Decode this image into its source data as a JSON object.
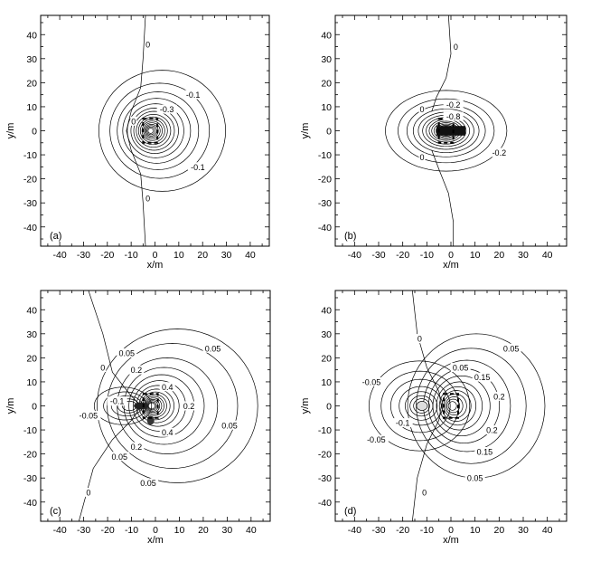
{
  "chart_data": [
    {
      "type": "contour",
      "panel_label": "(a)",
      "xlabel": "x/m",
      "ylabel": "y/m",
      "xlim": [
        -48,
        48
      ],
      "ylim": [
        -48,
        48
      ],
      "xticks": [
        "-40",
        "-30",
        "-20",
        "-10",
        "0",
        "10",
        "20",
        "30",
        "40"
      ],
      "yticks": [
        "40",
        "30",
        "20",
        "10",
        "0",
        "-10",
        "-20",
        "-30",
        "-40"
      ],
      "source": {
        "x": -2,
        "y": 0
      },
      "contour_labels": [
        {
          "text": "0",
          "x": -3,
          "y": 36
        },
        {
          "text": "-0.1",
          "x": 16,
          "y": 15
        },
        {
          "text": "-0.3",
          "x": 5,
          "y": 9
        },
        {
          "text": "0",
          "x": -9,
          "y": 4
        },
        {
          "text": "-0.1",
          "x": 18,
          "y": -15
        },
        {
          "text": "0",
          "x": -3,
          "y": -28
        }
      ]
    },
    {
      "type": "contour",
      "panel_label": "(b)",
      "xlabel": "x/m",
      "ylabel": "y/m",
      "xlim": [
        -48,
        48
      ],
      "ylim": [
        -48,
        48
      ],
      "xticks": [
        "-40",
        "-30",
        "-20",
        "-10",
        "0",
        "10",
        "20",
        "30",
        "40"
      ],
      "yticks": [
        "40",
        "30",
        "20",
        "10",
        "0",
        "-10",
        "-20",
        "-30",
        "-40"
      ],
      "source": {
        "x": -2,
        "y": 0
      },
      "contour_labels": [
        {
          "text": "0",
          "x": 2,
          "y": 35
        },
        {
          "text": "-0.2",
          "x": 1,
          "y": 11
        },
        {
          "text": "-0.8",
          "x": 1,
          "y": 6
        },
        {
          "text": "0",
          "x": -12,
          "y": 9
        },
        {
          "text": "0",
          "x": -12,
          "y": -11
        },
        {
          "text": "-0.2",
          "x": 20,
          "y": -9
        }
      ]
    },
    {
      "type": "contour",
      "panel_label": "(c)",
      "xlabel": "x/m",
      "ylabel": "y/m",
      "xlim": [
        -48,
        48
      ],
      "ylim": [
        -48,
        48
      ],
      "xticks": [
        "-40",
        "-30",
        "-20",
        "-10",
        "0",
        "10",
        "20",
        "30",
        "40"
      ],
      "yticks": [
        "40",
        "30",
        "20",
        "10",
        "0",
        "-10",
        "-20",
        "-30",
        "-40"
      ],
      "source": {
        "x": -2,
        "y": 0
      },
      "contour_labels": [
        {
          "text": "0.05",
          "x": -12,
          "y": 22
        },
        {
          "text": "0.05",
          "x": 24,
          "y": 24
        },
        {
          "text": "0",
          "x": -22,
          "y": 16
        },
        {
          "text": "0.2",
          "x": -8,
          "y": 15
        },
        {
          "text": "0.4",
          "x": 5,
          "y": 8
        },
        {
          "text": "-0.1",
          "x": -16,
          "y": 2
        },
        {
          "text": "0.2",
          "x": 14,
          "y": 0
        },
        {
          "text": "-0.05",
          "x": -28,
          "y": -4
        },
        {
          "text": "0.4",
          "x": 5,
          "y": -11
        },
        {
          "text": "0.05",
          "x": 31,
          "y": -8
        },
        {
          "text": "0.2",
          "x": -8,
          "y": -17
        },
        {
          "text": "0.05",
          "x": -15,
          "y": -21
        },
        {
          "text": "0.05",
          "x": -3,
          "y": -32
        },
        {
          "text": "0",
          "x": -28,
          "y": -36
        }
      ]
    },
    {
      "type": "contour",
      "panel_label": "(d)",
      "xlabel": "x/m",
      "ylabel": "y/m",
      "xlim": [
        -48,
        48
      ],
      "ylim": [
        -48,
        48
      ],
      "xticks": [
        "-40",
        "-30",
        "-20",
        "-10",
        "0",
        "10",
        "20",
        "30",
        "40"
      ],
      "yticks": [
        "40",
        "30",
        "20",
        "10",
        "0",
        "-10",
        "-20",
        "-30",
        "-40"
      ],
      "source": {
        "x": 0,
        "y": 0
      },
      "contour_labels": [
        {
          "text": "0",
          "x": -13,
          "y": 28
        },
        {
          "text": "0.05",
          "x": 4,
          "y": 16
        },
        {
          "text": "0.05",
          "x": 25,
          "y": 24
        },
        {
          "text": "-0.05",
          "x": -33,
          "y": 10
        },
        {
          "text": "0.15",
          "x": 13,
          "y": 12
        },
        {
          "text": "0.2",
          "x": 20,
          "y": 4
        },
        {
          "text": "-0.1",
          "x": -20,
          "y": -7
        },
        {
          "text": "0.2",
          "x": 17,
          "y": -10
        },
        {
          "text": "-0.05",
          "x": -31,
          "y": -14
        },
        {
          "text": "0.15",
          "x": 14,
          "y": -19
        },
        {
          "text": "0.05",
          "x": 10,
          "y": -30
        },
        {
          "text": "0",
          "x": -11,
          "y": -36
        }
      ]
    }
  ]
}
